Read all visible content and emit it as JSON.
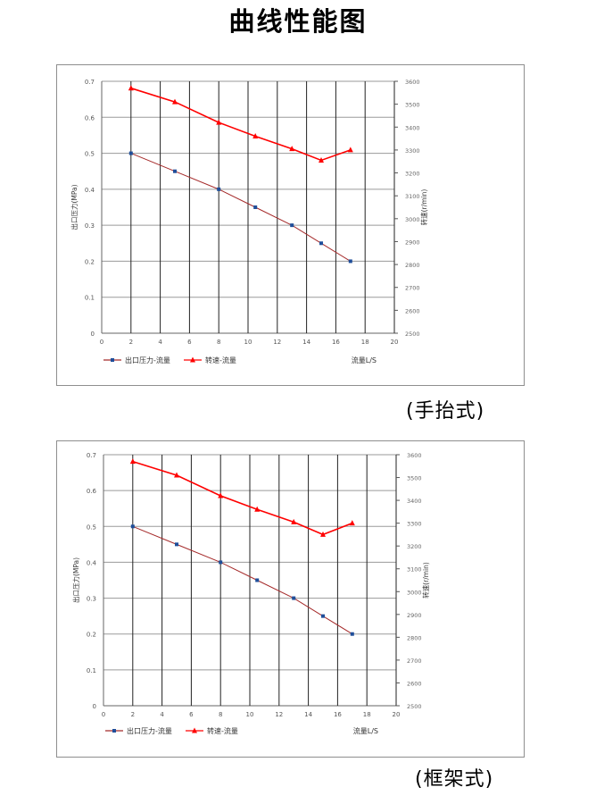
{
  "page": {
    "title": "曲线性能图",
    "captions": [
      "(手抬式)",
      "(框架式)"
    ]
  },
  "chart_data": [
    {
      "type": "line",
      "xlabel": "流量L/S",
      "ylabel_left": "出口压力(MPa)",
      "ylabel_right": "转速(r/min)",
      "xlim": [
        0,
        20
      ],
      "ylim_left": [
        0,
        0.7
      ],
      "ylim_right": [
        2500,
        3600
      ],
      "x_ticks": [
        "0",
        "2",
        "4",
        "6",
        "8",
        "10",
        "12",
        "14",
        "16",
        "18",
        "20"
      ],
      "y_left_ticks": [
        "0",
        "0.1",
        "0.2",
        "0.3",
        "0.4",
        "0.5",
        "0.6",
        "0.7"
      ],
      "y_right_ticks": [
        "2500",
        "2600",
        "2700",
        "2800",
        "2900",
        "3000",
        "3100",
        "3200",
        "3300",
        "3400",
        "3500",
        "3600"
      ],
      "grid": true,
      "legend_position": "bottom-left",
      "series": [
        {
          "name": "出口压力-流量",
          "axis": "left",
          "color": "#a52a2a",
          "marker": "square",
          "marker_color": "#1f4e9a",
          "x": [
            2,
            5,
            8,
            10.5,
            13,
            15,
            17
          ],
          "y": [
            0.5,
            0.45,
            0.4,
            0.35,
            0.3,
            0.25,
            0.2
          ]
        },
        {
          "name": "转速-流量",
          "axis": "right",
          "color": "#ff0000",
          "marker": "triangle",
          "marker_color": "#ff0000",
          "x": [
            2,
            5,
            8,
            10.5,
            13,
            15,
            17
          ],
          "y": [
            3570,
            3510,
            3420,
            3360,
            3305,
            3255,
            3300
          ]
        }
      ]
    },
    {
      "type": "line",
      "xlabel": "流量L/S",
      "ylabel_left": "出口压力(MPa)",
      "ylabel_right": "转速(r/min)",
      "xlim": [
        0,
        20
      ],
      "ylim_left": [
        0,
        0.7
      ],
      "ylim_right": [
        2500,
        3600
      ],
      "x_ticks": [
        "0",
        "2",
        "4",
        "6",
        "8",
        "10",
        "12",
        "14",
        "16",
        "18",
        "20"
      ],
      "y_left_ticks": [
        "0",
        "0.1",
        "0.2",
        "0.3",
        "0.4",
        "0.5",
        "0.6",
        "0.7"
      ],
      "y_right_ticks": [
        "2500",
        "2600",
        "2700",
        "2800",
        "2900",
        "3000",
        "3100",
        "3200",
        "3300",
        "3400",
        "3500",
        "3600"
      ],
      "grid": true,
      "legend_position": "bottom-left",
      "series": [
        {
          "name": "出口压力-流量",
          "axis": "left",
          "color": "#a52a2a",
          "marker": "square",
          "marker_color": "#1f4e9a",
          "x": [
            2,
            5,
            8,
            10.5,
            13,
            15,
            17
          ],
          "y": [
            0.5,
            0.45,
            0.4,
            0.35,
            0.3,
            0.25,
            0.2
          ]
        },
        {
          "name": "转速-流量",
          "axis": "right",
          "color": "#ff0000",
          "marker": "triangle",
          "marker_color": "#ff0000",
          "x": [
            2,
            5,
            8,
            10.5,
            13,
            15,
            17
          ],
          "y": [
            3570,
            3510,
            3420,
            3360,
            3305,
            3250,
            3300
          ]
        }
      ]
    }
  ]
}
